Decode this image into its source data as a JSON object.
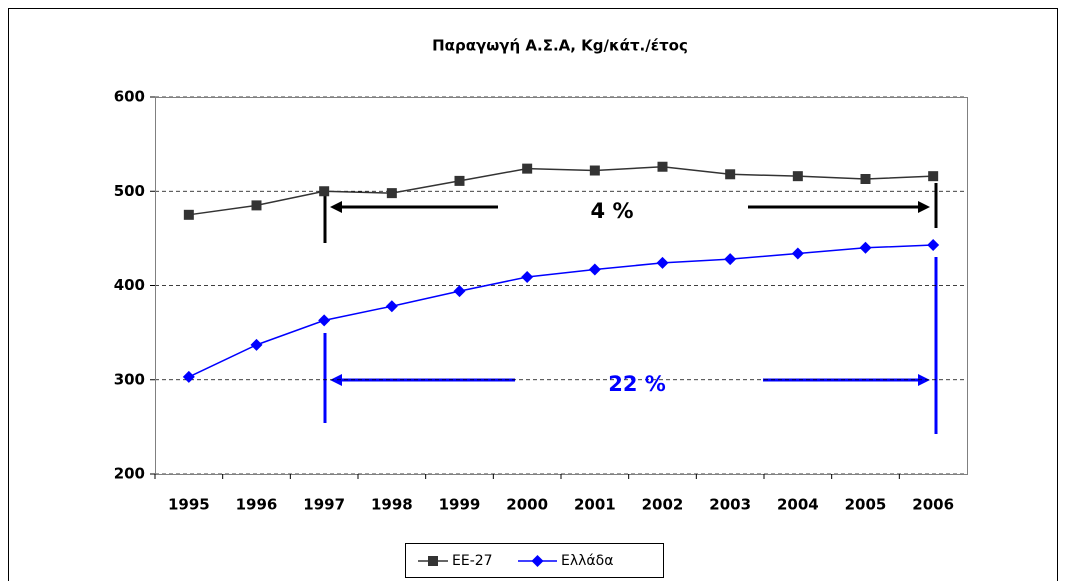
{
  "chart_data": {
    "type": "line",
    "title": "Παραγωγή Α.Σ.Α, Kg/κάτ./έτος",
    "categories": [
      "1995",
      "1996",
      "1997",
      "1998",
      "1999",
      "2000",
      "2001",
      "2002",
      "2003",
      "2004",
      "2005",
      "2006"
    ],
    "series": [
      {
        "name": "ΕΕ-27",
        "color": "#333333",
        "marker": "square",
        "values": [
          475,
          485,
          500,
          498,
          511,
          524,
          522,
          526,
          518,
          516,
          513,
          516
        ]
      },
      {
        "name": "Ελλάδα",
        "color": "#0000ff",
        "marker": "diamond",
        "values": [
          303,
          337,
          363,
          378,
          394,
          409,
          417,
          424,
          428,
          434,
          440,
          443
        ]
      }
    ],
    "ylim": [
      200,
      600
    ],
    "yticks": [
      200,
      300,
      400,
      500,
      600
    ],
    "grid": true,
    "legend": "bottom",
    "annotations": [
      {
        "text": "4 %",
        "color": "#000000"
      },
      {
        "text": "22 %",
        "color": "#0000ff"
      }
    ]
  }
}
